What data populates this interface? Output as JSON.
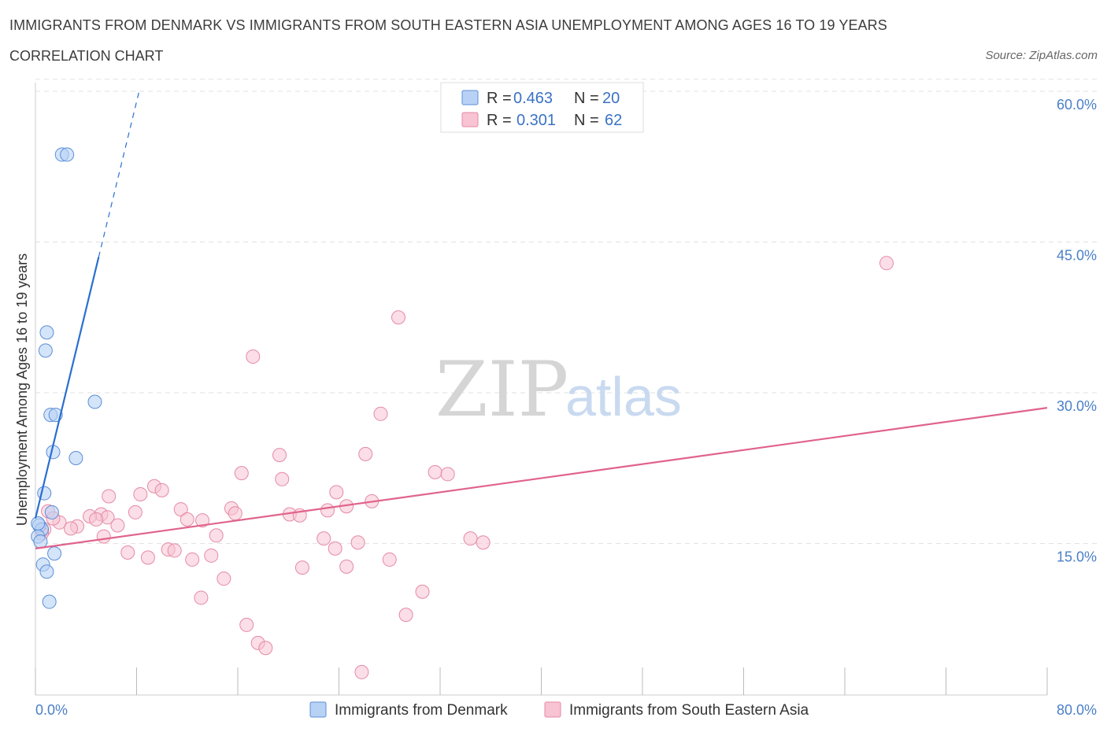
{
  "header": {
    "title": "IMMIGRANTS FROM DENMARK VS IMMIGRANTS FROM SOUTH EASTERN ASIA UNEMPLOYMENT AMONG AGES 16 TO 19 YEARS",
    "subtitle": "CORRELATION CHART",
    "source": "Source: ZipAtlas.com"
  },
  "colors": {
    "denmark_fill": "#b8d2f5",
    "denmark_stroke": "#5b8fd6",
    "denmark_line": "#2a6fd1",
    "sea_fill": "#f8c3d3",
    "sea_stroke": "#e58aa6",
    "sea_line": "#e0638b",
    "grid": "#e2e2e2",
    "axis_label": "#4a7fc8"
  },
  "watermark": {
    "zip": "ZIP",
    "atlas": "atlas"
  },
  "legend": {
    "r_label": "R =",
    "n_label": "N =",
    "rows": [
      {
        "r": "0.463",
        "n": "20"
      },
      {
        "r": "0.301",
        "n": "62"
      }
    ]
  },
  "chart_data": {
    "type": "scatter",
    "title": "IMMIGRANTS FROM DENMARK VS IMMIGRANTS FROM SOUTH EASTERN ASIA UNEMPLOYMENT AMONG AGES 16 TO 19 YEARS",
    "xlabel": "",
    "ylabel": "Unemployment Among Ages 16 to 19 years",
    "xlim": [
      0,
      80
    ],
    "ylim": [
      0,
      60
    ],
    "x_tick_labels": [
      "0.0%",
      "80.0%"
    ],
    "y_ticks": [
      15,
      30,
      45,
      60
    ],
    "y_tick_labels": [
      "15.0%",
      "30.0%",
      "45.0%",
      "60.0%"
    ],
    "series": [
      {
        "name": "Immigrants from Denmark",
        "r": 0.463,
        "n": 20,
        "trend": {
          "x0": 0,
          "y0": 17.5,
          "x1": 5.0,
          "y1": 43.5,
          "dashed_to_x": 8.2,
          "dashed_to_y": 60.0
        },
        "points": [
          [
            2.1,
            53.7
          ],
          [
            2.5,
            53.7
          ],
          [
            0.9,
            36.0
          ],
          [
            0.8,
            34.2
          ],
          [
            4.7,
            29.1
          ],
          [
            1.2,
            27.8
          ],
          [
            1.6,
            27.8
          ],
          [
            1.4,
            24.1
          ],
          [
            3.2,
            23.5
          ],
          [
            0.7,
            20.0
          ],
          [
            1.3,
            18.1
          ],
          [
            0.3,
            16.8
          ],
          [
            0.5,
            16.4
          ],
          [
            0.2,
            15.7
          ],
          [
            0.4,
            15.2
          ],
          [
            1.5,
            14.0
          ],
          [
            0.6,
            12.9
          ],
          [
            0.9,
            12.2
          ],
          [
            1.1,
            9.2
          ],
          [
            0.2,
            17.0
          ]
        ]
      },
      {
        "name": "Immigrants from South Eastern Asia",
        "r": 0.301,
        "n": 62,
        "trend": {
          "x0": 0,
          "y0": 14.5,
          "x1": 80,
          "y1": 28.5
        },
        "points": [
          [
            67.3,
            42.9
          ],
          [
            28.7,
            37.5
          ],
          [
            17.2,
            33.6
          ],
          [
            27.3,
            27.9
          ],
          [
            19.3,
            23.8
          ],
          [
            26.1,
            23.9
          ],
          [
            31.6,
            22.1
          ],
          [
            32.6,
            21.9
          ],
          [
            16.3,
            22.0
          ],
          [
            19.5,
            21.4
          ],
          [
            9.4,
            20.7
          ],
          [
            10.0,
            20.3
          ],
          [
            23.8,
            20.1
          ],
          [
            8.3,
            19.9
          ],
          [
            5.8,
            19.7
          ],
          [
            26.6,
            19.2
          ],
          [
            24.6,
            18.7
          ],
          [
            11.5,
            18.4
          ],
          [
            15.5,
            18.5
          ],
          [
            7.9,
            18.1
          ],
          [
            15.8,
            18.0
          ],
          [
            20.1,
            17.9
          ],
          [
            20.9,
            17.8
          ],
          [
            23.1,
            18.3
          ],
          [
            1.0,
            18.2
          ],
          [
            5.2,
            17.9
          ],
          [
            4.3,
            17.7
          ],
          [
            5.7,
            17.6
          ],
          [
            4.8,
            17.4
          ],
          [
            12.0,
            17.4
          ],
          [
            13.2,
            17.3
          ],
          [
            1.9,
            17.1
          ],
          [
            3.3,
            16.7
          ],
          [
            2.8,
            16.5
          ],
          [
            6.5,
            16.8
          ],
          [
            0.7,
            16.4
          ],
          [
            14.3,
            15.8
          ],
          [
            5.4,
            15.7
          ],
          [
            34.4,
            15.5
          ],
          [
            35.4,
            15.1
          ],
          [
            22.8,
            15.5
          ],
          [
            25.5,
            15.1
          ],
          [
            23.7,
            14.5
          ],
          [
            10.5,
            14.4
          ],
          [
            11.0,
            14.3
          ],
          [
            7.3,
            14.1
          ],
          [
            8.9,
            13.6
          ],
          [
            12.4,
            13.4
          ],
          [
            13.9,
            13.8
          ],
          [
            28.0,
            13.4
          ],
          [
            21.1,
            12.6
          ],
          [
            24.6,
            12.7
          ],
          [
            14.9,
            11.5
          ],
          [
            30.6,
            10.2
          ],
          [
            13.1,
            9.6
          ],
          [
            29.3,
            7.9
          ],
          [
            16.7,
            6.9
          ],
          [
            17.6,
            5.1
          ],
          [
            18.2,
            4.6
          ],
          [
            25.8,
            2.2
          ],
          [
            0.5,
            16.0
          ],
          [
            1.4,
            17.5
          ]
        ]
      }
    ],
    "legend_position": "top-center",
    "bottom_legend": [
      "Immigrants from Denmark",
      "Immigrants from South Eastern Asia"
    ]
  }
}
